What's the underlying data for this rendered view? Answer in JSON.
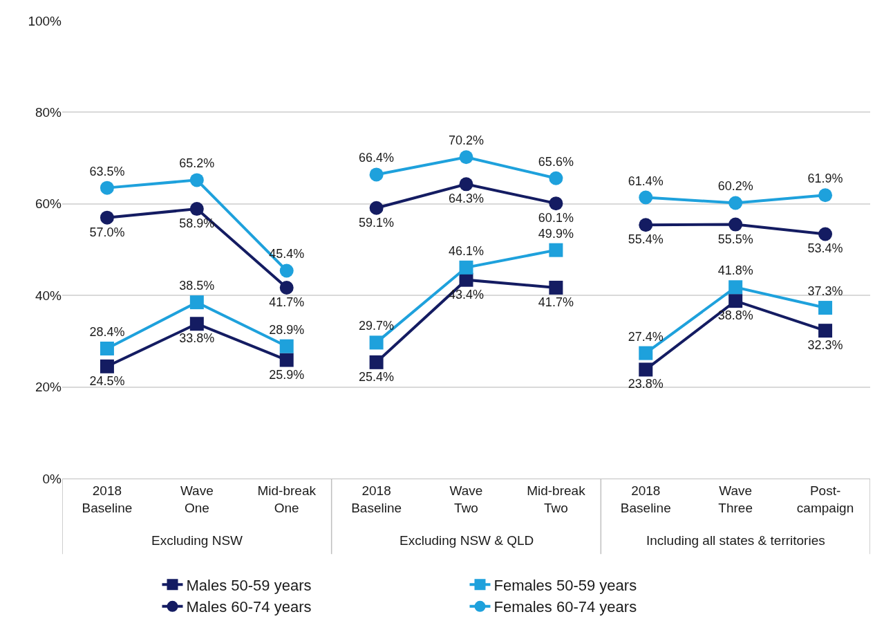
{
  "chart_data": {
    "type": "line",
    "categories": [
      "2018\nBaseline",
      "Wave\nOne",
      "Mid-break\nOne",
      "2018\nBaseline",
      "Wave\nTwo",
      "Mid-break\nTwo",
      "2018\nBaseline",
      "Wave\nThree",
      "Post-\ncampaign"
    ],
    "annotations": [
      "Excluding NSW",
      "Excluding NSW & QLD",
      "Including all states & territories"
    ],
    "series": [
      {
        "name": "Males 50-59 years",
        "color": "#141c62",
        "marker": "square",
        "values": [
          24.5,
          33.8,
          25.9,
          25.4,
          43.4,
          41.7,
          23.8,
          38.8,
          32.3
        ],
        "value_labels": [
          "24.5%",
          "33.8%",
          "25.9%",
          "25.4%",
          "43.4%",
          "41.7%",
          "23.8%",
          "38.8%",
          "32.3%"
        ]
      },
      {
        "name": "Females 50-59 years",
        "color": "#1ea1dc",
        "marker": "square",
        "values": [
          28.4,
          38.5,
          28.9,
          29.7,
          46.1,
          49.9,
          27.4,
          41.8,
          37.3
        ],
        "value_labels": [
          "28.4%",
          "38.5%",
          "28.9%",
          "29.7%",
          "46.1%",
          "49.9%",
          "27.4%",
          "41.8%",
          "37.3%"
        ]
      },
      {
        "name": "Males 60-74 years",
        "color": "#141c62",
        "marker": "circle",
        "values": [
          57.0,
          58.9,
          41.7,
          59.1,
          64.3,
          60.1,
          55.4,
          55.5,
          53.4
        ],
        "value_labels": [
          "57.0%",
          "58.9%",
          "41.7%",
          "59.1%",
          "64.3%",
          "60.1%",
          "55.4%",
          "55.5%",
          "53.4%"
        ]
      },
      {
        "name": "Females 60-74 years",
        "color": "#1ea1dc",
        "marker": "circle",
        "values": [
          63.5,
          65.2,
          45.4,
          66.4,
          70.2,
          65.6,
          61.4,
          60.2,
          61.9
        ],
        "value_labels": [
          "63.5%",
          "65.2%",
          "45.4%",
          "66.4%",
          "70.2%",
          "65.6%",
          "61.4%",
          "60.2%",
          "61.9%"
        ]
      }
    ],
    "ylim": [
      0,
      100
    ],
    "yticks": [
      {
        "value": 0,
        "label": "0%"
      },
      {
        "value": 20,
        "label": "20%"
      },
      {
        "value": 40,
        "label": "40%"
      },
      {
        "value": 60,
        "label": "60%"
      },
      {
        "value": 80,
        "label": "80%"
      },
      {
        "value": 100,
        "label": "100%"
      }
    ],
    "grid": "y",
    "legend": "bottom"
  }
}
